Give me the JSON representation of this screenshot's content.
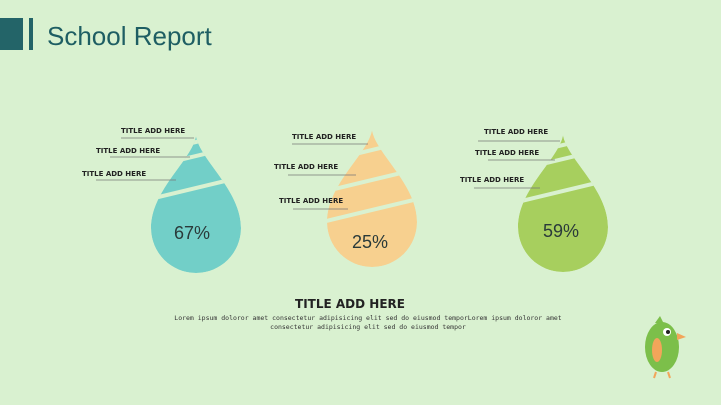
{
  "header": {
    "title": "School Report"
  },
  "drops": [
    {
      "value": "67%",
      "labels": [
        "TITLE ADD HERE",
        "TITLE ADD HERE",
        "TITLE ADD HERE"
      ]
    },
    {
      "value": "25%",
      "labels": [
        "TITLE ADD HERE",
        "TITLE ADD HERE",
        "TITLE ADD HERE"
      ]
    },
    {
      "value": "59%",
      "labels": [
        "TITLE ADD HERE",
        "TITLE ADD HERE",
        "TITLE ADD HERE"
      ]
    }
  ],
  "footer": {
    "title": "TITLE ADD HERE",
    "text": "Lorem ipsum doloror amet consectetur adipisicing elit sed do eiusmod temporLorem ipsum doloror amet consectetur adipisicing elit sed do eiusmod tempor"
  }
}
